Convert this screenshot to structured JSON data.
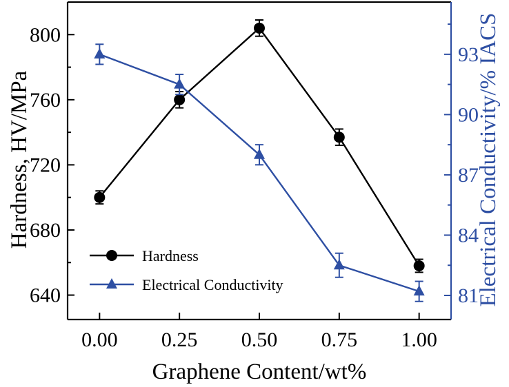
{
  "chart_data": {
    "type": "line",
    "xlabel": "Graphene Content/wt%",
    "ylabel_left": "Hardness, HV/MPa",
    "ylabel_right": "Electrical Conductivity/% IACS",
    "x": [
      0.0,
      0.25,
      0.5,
      0.75,
      1.0
    ],
    "x_tick_labels": [
      "0.00",
      "0.25",
      "0.50",
      "0.75",
      "1.00"
    ],
    "xlim": [
      -0.1,
      1.1
    ],
    "ylim_left": [
      625,
      820
    ],
    "ylim_right": [
      79.8,
      95.6
    ],
    "y_ticks_left": [
      640,
      680,
      720,
      760,
      800
    ],
    "y_ticks_right": [
      81,
      84,
      87,
      90,
      93
    ],
    "grid": false,
    "legend_position": "bottom-left",
    "series": [
      {
        "name": "Hardness",
        "axis": "left",
        "marker": "circle",
        "color": "#000000",
        "values": [
          700,
          760,
          804,
          737,
          658
        ],
        "errors": [
          4,
          5,
          5,
          5,
          4
        ]
      },
      {
        "name": "Electrical Conductivity",
        "axis": "right",
        "marker": "triangle",
        "color": "#2e4fa3",
        "values": [
          93.0,
          91.5,
          88.0,
          82.5,
          81.2
        ],
        "errors": [
          0.5,
          0.5,
          0.5,
          0.6,
          0.5
        ]
      }
    ]
  }
}
